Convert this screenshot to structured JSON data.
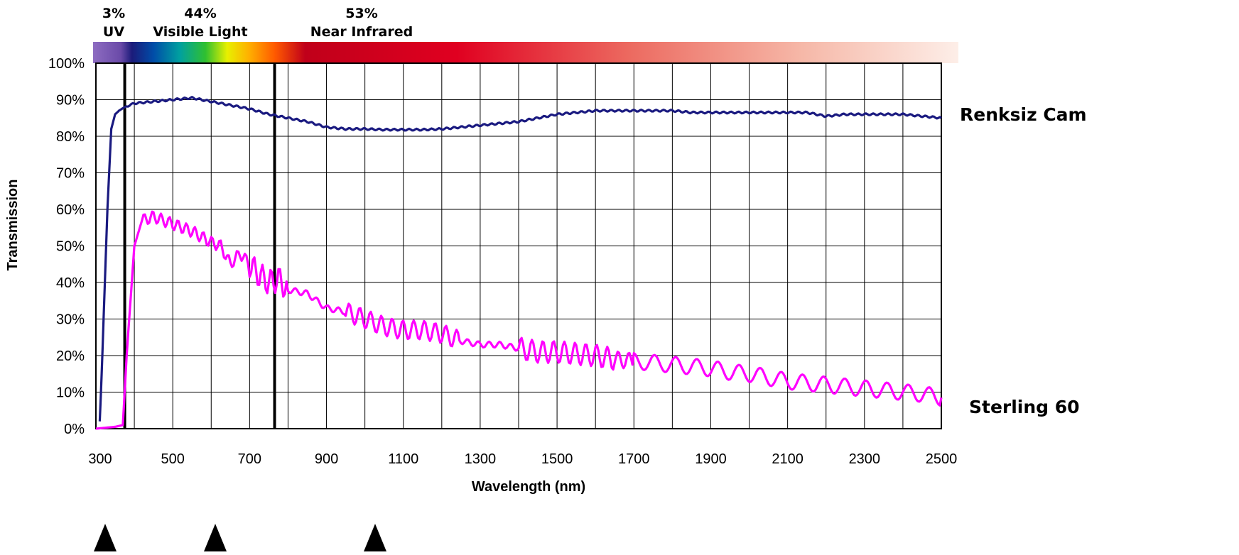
{
  "chart_data": {
    "type": "line",
    "xlabel": "Wavelength (nm)",
    "ylabel": "Transmission",
    "xlim": [
      300,
      2500
    ],
    "ylim": [
      0,
      100
    ],
    "x_ticks": [
      "300",
      "500",
      "700",
      "900",
      "1100",
      "1300",
      "1500",
      "1700",
      "1900",
      "2100",
      "2300",
      "2500"
    ],
    "y_ticks": [
      "0%",
      "10%",
      "20%",
      "30%",
      "40%",
      "50%",
      "60%",
      "70%",
      "80%",
      "90%",
      "100%"
    ],
    "grid": true,
    "spectrum_bands": [
      {
        "percent": "3%",
        "name": "UV",
        "range": [
          300,
          375
        ]
      },
      {
        "percent": "44%",
        "name": "Visible Light",
        "range": [
          375,
          765
        ]
      },
      {
        "percent": "53%",
        "name": "Near Infrared",
        "range": [
          765,
          2500
        ]
      }
    ],
    "band_boundaries": [
      375,
      765
    ],
    "arrow_markers": [
      300,
      600,
      1025
    ],
    "series": [
      {
        "name": "Renksiz Cam",
        "color": "#1a1a80",
        "x": [
          310,
          315,
          320,
          330,
          340,
          350,
          360,
          375,
          400,
          450,
          500,
          550,
          600,
          650,
          700,
          750,
          800,
          850,
          900,
          950,
          1000,
          1050,
          1100,
          1150,
          1200,
          1250,
          1300,
          1350,
          1400,
          1450,
          1500,
          1550,
          1600,
          1650,
          1700,
          1750,
          1800,
          1850,
          1900,
          1950,
          2000,
          2050,
          2100,
          2150,
          2200,
          2250,
          2300,
          2350,
          2400,
          2450,
          2500
        ],
        "y": [
          2,
          15,
          30,
          60,
          82,
          86,
          87,
          88,
          89,
          89.5,
          90,
          90.5,
          89.5,
          88.5,
          87.5,
          86,
          85,
          84,
          82.5,
          82,
          82,
          81.8,
          81.8,
          81.8,
          82,
          82.5,
          83,
          83.5,
          84,
          85,
          86,
          86.5,
          87,
          87,
          87,
          87,
          87,
          86.5,
          86.5,
          86.5,
          86.5,
          86.5,
          86.5,
          86.5,
          85.5,
          86,
          86,
          86,
          86,
          85.5,
          85
        ]
      },
      {
        "name": "Sterling 60",
        "color": "#ff00ff",
        "x": [
          300,
          350,
          370,
          380,
          400,
          420,
          450,
          500,
          550,
          600,
          625,
          650,
          675,
          700,
          725,
          750,
          775,
          800,
          850,
          900,
          950,
          1000,
          1050,
          1100,
          1150,
          1200,
          1250,
          1300,
          1350,
          1400,
          1450,
          1500,
          1550,
          1600,
          1650,
          1700,
          1750,
          1800,
          1850,
          1900,
          1950,
          2000,
          2050,
          2100,
          2150,
          2200,
          2250,
          2300,
          2350,
          2400,
          2450,
          2500
        ],
        "y": [
          0,
          0.5,
          1,
          20,
          50,
          57,
          58,
          56,
          54,
          51,
          50,
          45,
          48,
          45,
          42,
          40,
          41,
          38,
          37,
          33,
          32,
          30,
          28,
          27,
          27,
          26,
          24,
          23,
          23,
          22,
          21,
          21,
          20.5,
          20,
          19,
          18.5,
          18,
          17.5,
          17,
          16.5,
          15.5,
          15,
          14,
          13,
          12.5,
          12,
          11.5,
          11,
          10.5,
          10,
          9.5,
          8.5
        ]
      }
    ]
  }
}
